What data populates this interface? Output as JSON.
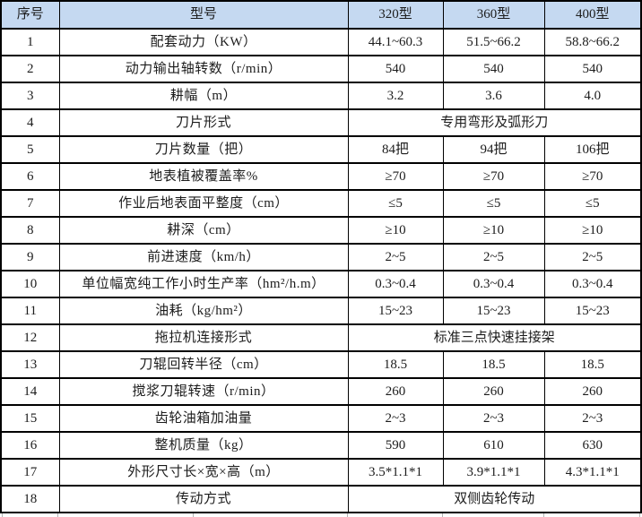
{
  "colors": {
    "header_bg": "#c5d9f1",
    "border": "#000000",
    "text": "#1c1c1c"
  },
  "table": {
    "headers": [
      "序号",
      "型号",
      "320型",
      "360型",
      "400型"
    ],
    "rows": [
      {
        "no": "1",
        "label": "配套动力（KW）",
        "values": [
          "44.1~60.3",
          "51.5~66.2",
          "58.8~66.2"
        ]
      },
      {
        "no": "2",
        "label": "动力输出轴转数（r/min）",
        "values": [
          "540",
          "540",
          "540"
        ]
      },
      {
        "no": "3",
        "label": "耕幅（m）",
        "values": [
          "3.2",
          "3.6",
          "4.0"
        ]
      },
      {
        "no": "4",
        "label": "刀片形式",
        "span": "专用弯形及弧形刀"
      },
      {
        "no": "5",
        "label": "刀片数量（把）",
        "values": [
          "84把",
          "94把",
          "106把"
        ]
      },
      {
        "no": "6",
        "label": "地表植被覆盖率%",
        "values": [
          "≥70",
          "≥70",
          "≥70"
        ]
      },
      {
        "no": "7",
        "label": "作业后地表面平整度（cm）",
        "values": [
          "≤5",
          "≤5",
          "≤5"
        ]
      },
      {
        "no": "8",
        "label": "耕深（cm）",
        "values": [
          "≥10",
          "≥10",
          "≥10"
        ]
      },
      {
        "no": "9",
        "label": "前进速度（km/h）",
        "values": [
          "2~5",
          "2~5",
          "2~5"
        ]
      },
      {
        "no": "10",
        "label": "单位幅宽纯工作小时生产率（hm²/h.m）",
        "values": [
          "0.3~0.4",
          "0.3~0.4",
          "0.3~0.4"
        ]
      },
      {
        "no": "11",
        "label": "油耗（kg/hm²）",
        "values": [
          "15~23",
          "15~23",
          "15~23"
        ]
      },
      {
        "no": "12",
        "label": "拖拉机连接形式",
        "span": "标准三点快速挂接架"
      },
      {
        "no": "13",
        "label": "刀辊回转半径（cm）",
        "values": [
          "18.5",
          "18.5",
          "18.5"
        ]
      },
      {
        "no": "14",
        "label": "搅浆刀辊转速（r/min）",
        "values": [
          "260",
          "260",
          "260"
        ]
      },
      {
        "no": "15",
        "label": "齿轮油箱加油量",
        "values": [
          "2~3",
          "2~3",
          "2~3"
        ]
      },
      {
        "no": "16",
        "label": "整机质量（kg）",
        "values": [
          "590",
          "610",
          "630"
        ]
      },
      {
        "no": "17",
        "label": "外形尺寸长×宽×高（m）",
        "values": [
          "3.5*1.1*1",
          "3.9*1.1*1",
          "4.3*1.1*1"
        ]
      },
      {
        "no": "18",
        "label": "传动方式",
        "span": "双侧齿轮传动"
      }
    ]
  }
}
